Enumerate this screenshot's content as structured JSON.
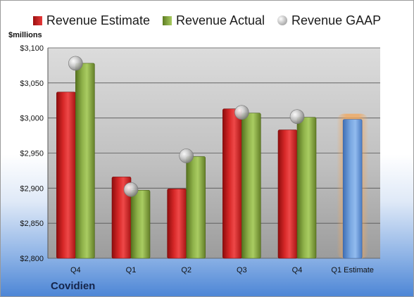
{
  "legend": {
    "estimate": "Revenue Estimate",
    "actual": "Revenue Actual",
    "gaap": "Revenue GAAP"
  },
  "unit_label": "$millions",
  "company": "Covidien",
  "colors": {
    "estimate": "#c0181e",
    "actual": "#7f9f3c",
    "gaap": "#b0b0b0",
    "forecast_bar": "#6f9fd8",
    "forecast_glow": "#f3a75a"
  },
  "chart_data": {
    "type": "bar",
    "categories": [
      "Q4",
      "Q1",
      "Q2",
      "Q3",
      "Q4",
      "Q1 Estimate"
    ],
    "y_ticks": [
      "$2,800",
      "$2,850",
      "$2,900",
      "$2,950",
      "$3,000",
      "$3,050",
      "$3,100"
    ],
    "ylim": [
      2800,
      3100
    ],
    "grid": true,
    "legend_position": "top",
    "series": [
      {
        "name": "Revenue Estimate",
        "values": [
          3037,
          2916,
          2899,
          3013,
          2983,
          2998
        ]
      },
      {
        "name": "Revenue Actual",
        "values": [
          3078,
          2897,
          2945,
          3007,
          3001,
          null
        ]
      },
      {
        "name": "Revenue GAAP",
        "values": [
          3078,
          2898,
          2946,
          3008,
          3002,
          null
        ]
      }
    ]
  }
}
